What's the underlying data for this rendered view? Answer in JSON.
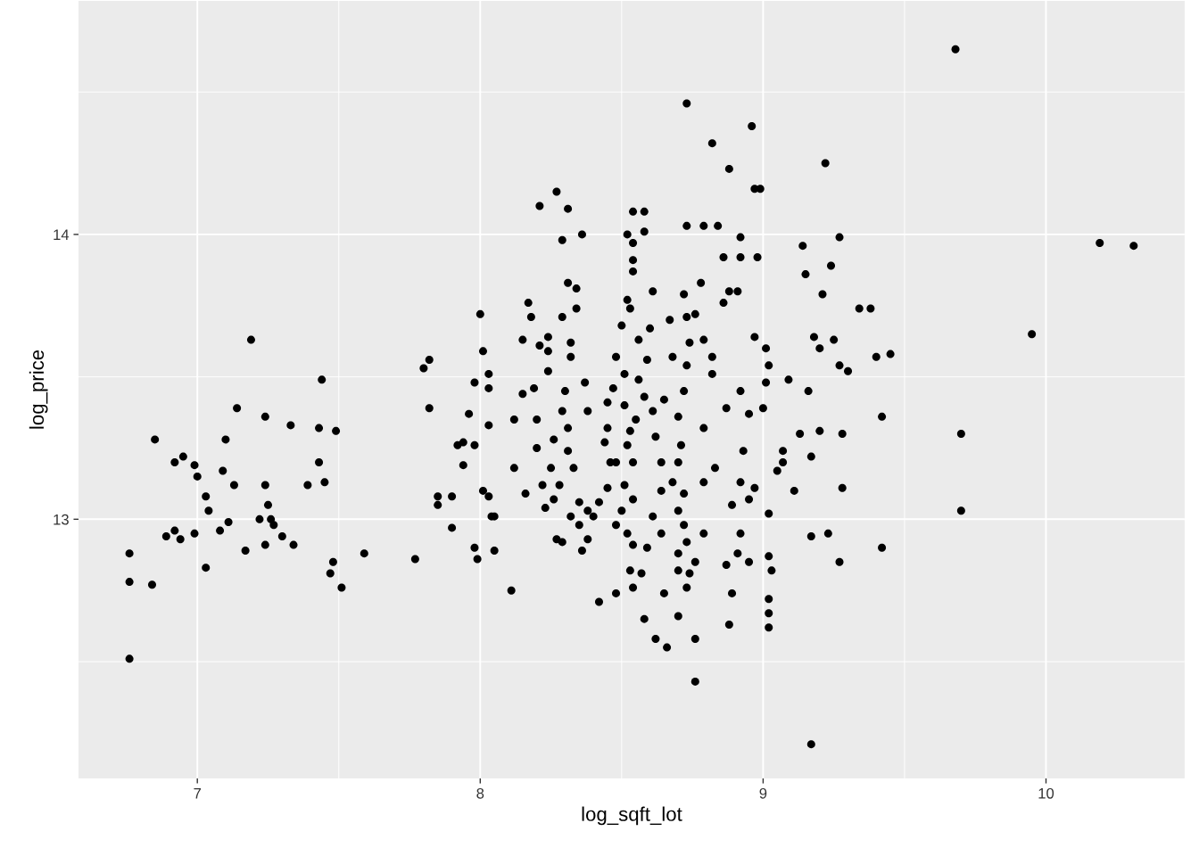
{
  "chart_data": {
    "type": "scatter",
    "xlabel": "log_sqft_lot",
    "ylabel": "log_price",
    "xlim": [
      6.58,
      10.49
    ],
    "ylim": [
      12.09,
      14.82
    ],
    "xticks": [
      7,
      8,
      9,
      10
    ],
    "yticks": [
      13,
      14
    ],
    "grid": true,
    "marker": "circle",
    "series": [
      {
        "color": "#000000",
        "x": [
          6.76,
          6.76,
          6.76,
          6.84,
          6.85,
          6.89,
          6.92,
          6.92,
          6.94,
          6.95,
          6.99,
          7.0,
          6.99,
          7.03,
          7.03,
          7.04,
          7.08,
          7.09,
          7.1,
          7.11,
          7.13,
          7.14,
          7.17,
          7.19,
          7.22,
          7.24,
          7.24,
          7.24,
          7.25,
          7.26,
          7.27,
          7.3,
          7.33,
          7.34,
          7.39,
          7.43,
          7.43,
          7.44,
          7.45,
          7.47,
          7.48,
          7.49,
          7.51,
          7.59,
          7.77,
          7.8,
          7.82,
          7.82,
          7.85,
          7.85,
          7.9,
          7.9,
          7.92,
          7.94,
          7.94,
          7.96,
          7.98,
          7.98,
          7.98,
          7.99,
          8.0,
          8.01,
          8.01,
          8.03,
          8.03,
          8.03,
          8.03,
          8.04,
          8.05,
          8.05,
          8.11,
          8.21,
          8.27,
          8.29,
          8.31,
          8.36,
          8.17,
          8.18,
          8.15,
          8.21,
          8.24,
          8.24,
          8.24,
          8.19,
          8.29,
          8.31,
          8.34,
          8.34,
          8.32,
          8.32,
          8.3,
          8.29,
          8.31,
          8.31,
          8.33,
          8.25,
          8.22,
          8.23,
          8.26,
          8.28,
          8.12,
          8.12,
          8.15,
          8.2,
          8.32,
          8.35,
          8.38,
          8.4,
          8.29,
          8.36,
          8.38,
          8.42,
          8.45,
          8.46,
          8.44,
          8.45,
          8.47,
          8.5,
          8.52,
          8.52,
          8.54,
          8.54,
          8.53,
          8.54,
          8.54,
          8.58,
          8.58,
          8.61,
          8.6,
          8.56,
          8.56,
          8.58,
          8.55,
          8.53,
          8.52,
          8.54,
          8.51,
          8.5,
          8.52,
          8.54,
          8.59,
          8.64,
          8.57,
          8.53,
          8.65,
          8.58,
          8.62,
          8.66,
          8.7,
          8.73,
          8.76,
          8.76,
          8.74,
          8.76,
          8.73,
          8.72,
          8.7,
          8.72,
          8.7,
          8.71,
          8.7,
          8.72,
          8.73,
          8.74,
          8.73,
          8.72,
          8.73,
          8.73,
          8.76,
          8.79,
          8.78,
          8.82,
          8.84,
          8.86,
          8.86,
          8.88,
          8.91,
          8.92,
          8.92,
          8.98,
          8.97,
          8.88,
          8.96,
          8.99,
          8.97,
          9.01,
          9.02,
          9.01,
          9.0,
          8.95,
          8.93,
          8.92,
          8.89,
          8.95,
          8.92,
          8.91,
          8.87,
          8.89,
          8.88,
          8.95,
          9.02,
          9.03,
          9.02,
          9.02,
          9.02,
          9.02,
          8.97,
          9.05,
          9.07,
          9.09,
          9.07,
          9.11,
          9.13,
          9.14,
          9.15,
          9.22,
          9.24,
          9.27,
          9.21,
          9.2,
          9.18,
          9.16,
          9.2,
          9.17,
          9.28,
          9.28,
          9.27,
          9.3,
          9.23,
          9.27,
          9.17,
          9.17,
          9.25,
          9.34,
          9.38,
          9.4,
          9.42,
          9.42,
          9.45,
          9.68,
          9.95,
          9.7,
          9.7,
          10.19,
          10.31,
          8.79,
          8.79,
          8.64,
          8.62,
          8.65,
          8.68,
          8.59,
          8.48,
          8.45,
          8.38,
          8.37,
          8.26,
          8.2,
          8.16,
          8.27,
          8.35,
          8.48,
          8.51,
          8.61,
          8.64,
          8.68,
          8.79,
          8.82,
          8.92,
          8.87,
          8.83,
          8.7,
          8.7,
          8.61,
          8.54,
          8.48,
          8.54,
          8.48,
          8.42,
          8.51,
          8.67,
          8.79,
          8.82
        ],
        "values": [
          12.88,
          12.78,
          12.51,
          12.77,
          13.28,
          12.94,
          13.2,
          12.96,
          12.93,
          13.22,
          13.19,
          13.15,
          12.95,
          12.83,
          13.08,
          13.03,
          12.96,
          13.17,
          13.28,
          12.99,
          13.12,
          13.39,
          12.89,
          13.63,
          13.0,
          13.12,
          12.91,
          13.36,
          13.05,
          13.0,
          12.98,
          12.94,
          13.33,
          12.91,
          13.12,
          13.32,
          13.2,
          13.49,
          13.13,
          12.81,
          12.85,
          13.31,
          12.76,
          12.88,
          12.86,
          13.53,
          13.56,
          13.39,
          13.05,
          13.08,
          13.08,
          12.97,
          13.26,
          13.27,
          13.19,
          13.37,
          13.48,
          13.26,
          12.9,
          12.86,
          13.72,
          13.59,
          13.1,
          13.51,
          13.46,
          13.33,
          13.08,
          13.01,
          12.89,
          13.01,
          12.75,
          14.1,
          14.15,
          13.98,
          14.09,
          14.0,
          13.76,
          13.71,
          13.63,
          13.61,
          13.64,
          13.59,
          13.52,
          13.46,
          13.71,
          13.83,
          13.81,
          13.74,
          13.62,
          13.57,
          13.45,
          13.38,
          13.32,
          13.24,
          13.18,
          13.18,
          13.12,
          13.04,
          13.07,
          13.12,
          13.35,
          13.18,
          13.44,
          13.35,
          13.01,
          13.06,
          13.03,
          13.01,
          12.92,
          12.89,
          12.93,
          13.06,
          13.11,
          13.2,
          13.27,
          13.41,
          13.46,
          13.68,
          13.77,
          14.0,
          14.08,
          13.97,
          13.74,
          13.91,
          13.87,
          14.08,
          14.01,
          13.8,
          13.67,
          13.63,
          13.49,
          13.43,
          13.35,
          13.31,
          13.26,
          13.2,
          13.12,
          13.03,
          12.95,
          12.91,
          12.9,
          12.95,
          12.81,
          12.82,
          12.74,
          12.65,
          12.58,
          12.55,
          12.66,
          12.76,
          12.58,
          12.43,
          12.81,
          12.85,
          12.92,
          12.98,
          13.03,
          13.09,
          13.2,
          13.26,
          13.36,
          13.45,
          13.54,
          13.62,
          13.71,
          13.79,
          14.03,
          14.46,
          13.72,
          14.03,
          13.83,
          14.32,
          14.03,
          13.92,
          13.76,
          13.8,
          13.8,
          13.99,
          13.92,
          13.92,
          14.16,
          14.23,
          14.38,
          14.16,
          13.64,
          13.6,
          13.54,
          13.48,
          13.39,
          13.37,
          13.24,
          13.13,
          13.05,
          13.07,
          12.95,
          12.88,
          12.84,
          12.74,
          12.63,
          12.85,
          12.87,
          12.82,
          12.67,
          12.62,
          12.72,
          13.02,
          13.11,
          13.17,
          13.2,
          13.49,
          13.24,
          13.1,
          13.3,
          13.96,
          13.86,
          14.25,
          13.89,
          13.99,
          13.79,
          13.6,
          13.64,
          13.45,
          13.31,
          13.22,
          13.3,
          13.11,
          13.54,
          13.52,
          12.95,
          12.85,
          12.94,
          12.21,
          13.63,
          13.74,
          13.74,
          13.57,
          13.36,
          12.9,
          13.58,
          14.65,
          13.65,
          13.3,
          13.03,
          13.97,
          13.96,
          12.95,
          13.13,
          13.1,
          13.29,
          13.42,
          13.57,
          13.56,
          13.57,
          13.32,
          13.38,
          13.48,
          13.28,
          13.25,
          13.09,
          12.93,
          12.98,
          13.2,
          13.4,
          13.38,
          13.2,
          13.13,
          13.32,
          13.51,
          13.45,
          13.39,
          13.18,
          12.88,
          12.82,
          13.01,
          13.07,
          12.98,
          12.76,
          12.74,
          12.71,
          13.51,
          13.7,
          13.63,
          13.57
        ]
      }
    ]
  }
}
